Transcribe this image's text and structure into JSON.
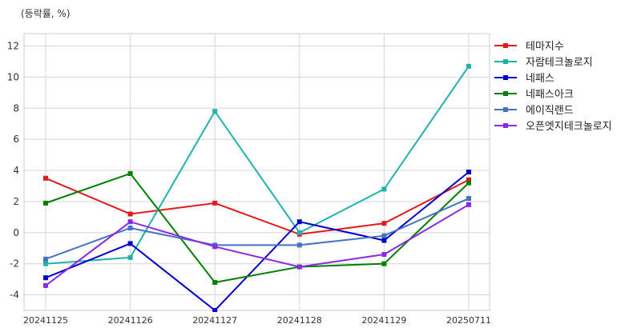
{
  "chart_data": {
    "type": "line",
    "unit_label": "(등락률, %)",
    "categories": [
      "20241125",
      "20241126",
      "20241127",
      "20241128",
      "20241129",
      "20250711"
    ],
    "ylim": [
      -5,
      12.8
    ],
    "yticks": [
      -4,
      -2,
      0,
      2,
      4,
      6,
      8,
      10,
      12
    ],
    "grid": true,
    "legend_position": "right",
    "series": [
      {
        "name": "테마지수",
        "color": "#e31a1c",
        "values": [
          3.5,
          1.2,
          1.9,
          -0.1,
          0.6,
          3.4
        ]
      },
      {
        "name": "자람테크놀로지",
        "color": "#20b2aa",
        "values": [
          -2.0,
          -1.6,
          7.8,
          0.0,
          2.8,
          10.7
        ]
      },
      {
        "name": "네패스",
        "color": "#0000cd",
        "values": [
          -2.9,
          -0.7,
          -5.0,
          0.7,
          -0.5,
          3.9
        ]
      },
      {
        "name": "네패스아크",
        "color": "#008000",
        "values": [
          1.9,
          3.8,
          -3.2,
          -2.2,
          -2.0,
          3.2
        ]
      },
      {
        "name": "에이직랜드",
        "color": "#4472c4",
        "values": [
          -1.7,
          0.3,
          -0.8,
          -0.8,
          -0.2,
          2.2
        ]
      },
      {
        "name": "오픈엣지테크놀로지",
        "color": "#8a2be2",
        "values": [
          -3.4,
          0.7,
          -0.9,
          -2.2,
          -1.4,
          1.8
        ]
      }
    ]
  }
}
